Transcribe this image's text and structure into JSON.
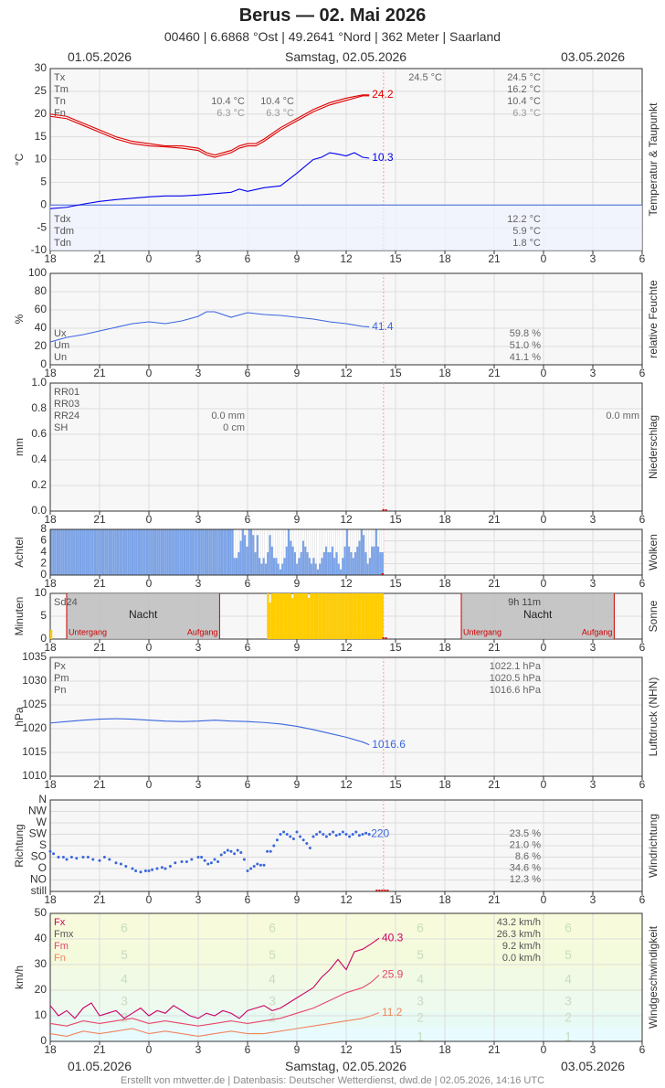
{
  "header": {
    "title": "Berus  —  02. Mai 2026",
    "subtitle": "00460  |  6.6868 °Ost  |  49.2641 °Nord  |  362 Meter  |  Saarland",
    "date_left": "01.05.2026",
    "date_center": "Samstag, 02.05.2026",
    "date_right": "03.05.2026"
  },
  "footer": "Erstellt von mtwetter.de | Datenbasis: Deutscher Wetterdienst, dwd.de | 02.05.2026, 14:16 UTC",
  "x_axis": {
    "ticks": [
      "18",
      "21",
      "0",
      "3",
      "6",
      "9",
      "12",
      "15",
      "18",
      "21",
      "0",
      "3",
      "6"
    ],
    "start_hour": 18,
    "range_hours": 36
  },
  "colors": {
    "red": "#e00000",
    "blue": "#0000ee",
    "royal": "#3a66dd",
    "cloud": "#7ba3e8",
    "sun": "#ffcc00",
    "night": "#bdbdbd",
    "gust": "#cc0066",
    "mean": "#e8456a",
    "min": "#f0845a",
    "grid": "#e0e0e0",
    "axis": "#333333",
    "marker": "#cc0000"
  },
  "chart_data": [
    {
      "id": "temp",
      "type": "line",
      "ylabel": "°C",
      "side_label": "Temperatur & Taupunkt",
      "ylim": [
        -10,
        30
      ],
      "yticks": [
        -10,
        -5,
        0,
        5,
        10,
        15,
        20,
        25,
        30
      ],
      "legend_top": [
        "Tx",
        "Tm",
        "Tn",
        "Fn"
      ],
      "legend_bottom": [
        "Tdx",
        "Tdm",
        "Tdn"
      ],
      "stats_day1": {
        "tx": "10.4 °C",
        "fn": "6.3 °C"
      },
      "stats_day1b": {
        "tx": "10.4 °C",
        "fn": "6.3 °C"
      },
      "stats_max": "24.5 °C",
      "stats_day2": {
        "tx": "24.5 °C",
        "tm": "16.2 °C",
        "tn": "10.4 °C",
        "fn": "6.3 °C",
        "tdx": "12.2 °C",
        "tdm": "5.9 °C",
        "tdn": "1.8 °C"
      },
      "series": [
        {
          "name": "Temperatur",
          "color": "#e00000",
          "end_label": "24.2",
          "x": [
            0,
            1,
            2,
            3,
            4,
            5,
            6,
            7,
            8,
            9,
            9.5,
            10,
            10.5,
            11,
            11.5,
            12,
            12.5,
            13,
            14,
            15,
            16,
            17,
            18,
            19,
            19.4
          ],
          "values": [
            20,
            19.5,
            18,
            16.5,
            15,
            14,
            13.5,
            13,
            13,
            12.5,
            11.5,
            11,
            11.5,
            12,
            13,
            13.5,
            13.5,
            14.5,
            17,
            19,
            21,
            22.5,
            23.5,
            24.2,
            24.2
          ]
        },
        {
          "name": "Temperatur Min",
          "color": "#e00000",
          "x": [
            0,
            1,
            2,
            3,
            4,
            5,
            6,
            7,
            8,
            9,
            9.5,
            10,
            10.5,
            11,
            11.5,
            12,
            12.5,
            13,
            14,
            15,
            16,
            17,
            18,
            19,
            19.4
          ],
          "values": [
            19.5,
            19,
            17.5,
            16,
            14.5,
            13.5,
            13,
            12.8,
            12.5,
            12,
            11,
            10.5,
            11,
            11.5,
            12.5,
            13,
            13,
            14,
            16.5,
            18.5,
            20.5,
            22,
            23,
            24,
            24
          ]
        },
        {
          "name": "Taupunkt",
          "color": "#0000ee",
          "end_label": "10.3",
          "x": [
            0,
            1,
            2,
            3,
            4,
            5,
            6,
            7,
            8,
            9,
            10,
            11,
            11.5,
            12,
            13,
            14,
            15,
            15.5,
            16,
            16.5,
            17,
            17.5,
            18,
            18.5,
            19,
            19.4
          ],
          "values": [
            -0.8,
            -0.5,
            0.2,
            0.8,
            1.2,
            1.5,
            1.8,
            2,
            2,
            2.2,
            2.5,
            2.8,
            3.5,
            3,
            3.8,
            4.2,
            7,
            8.5,
            10,
            10.5,
            11.5,
            11.2,
            10.8,
            11.5,
            10.5,
            10.3
          ]
        }
      ]
    },
    {
      "id": "humidity",
      "type": "line",
      "ylabel": "%",
      "side_label": "relative Feuchte",
      "ylim": [
        0,
        100
      ],
      "yticks": [
        0,
        20,
        40,
        60,
        80,
        100
      ],
      "legend_bottom": [
        "Ux",
        "Um",
        "Un"
      ],
      "stats": {
        "ux": "59.8 %",
        "um": "51.0 %",
        "un": "41.1 %"
      },
      "series": [
        {
          "name": "Feuchte",
          "color": "#3a66dd",
          "end_label": "41.4",
          "x": [
            0,
            1,
            2,
            3,
            4,
            5,
            6,
            7,
            8,
            9,
            9.5,
            10,
            11,
            12,
            13,
            14,
            15,
            16,
            17,
            18,
            19,
            19.4
          ],
          "values": [
            25,
            30,
            33,
            37,
            41,
            45,
            47,
            45,
            48,
            53,
            58,
            58,
            52,
            57,
            55,
            54,
            52,
            50,
            47,
            45,
            42,
            41.4
          ]
        }
      ]
    },
    {
      "id": "precip",
      "type": "bar",
      "ylabel": "mm",
      "side_label": "Niederschlag",
      "ylim": [
        0,
        1
      ],
      "yticks": [
        "0.0",
        "0.2",
        "0.4",
        "0.6",
        "0.8",
        "1.0"
      ],
      "legend_top": [
        "RR01",
        "RR03",
        "RR24",
        "SH"
      ],
      "stats_day1": {
        "rr24": "0.0 mm",
        "sh": "0 cm"
      },
      "stats_day2": {
        "rr24": "0.0 mm"
      },
      "values": []
    },
    {
      "id": "clouds",
      "type": "bar",
      "ylabel": "Achtel",
      "side_label": "Wolken",
      "ylim": [
        0,
        8
      ],
      "yticks": [
        0,
        2,
        4,
        6,
        8
      ],
      "values": [
        8,
        8,
        8,
        8,
        8,
        8,
        8,
        8,
        8,
        8,
        8,
        8,
        8,
        8,
        8,
        8,
        8,
        8,
        8,
        8,
        8,
        8,
        8,
        8,
        8,
        8,
        8,
        8,
        8,
        8,
        8,
        8,
        8,
        8,
        8,
        8,
        8,
        8,
        8,
        8,
        8,
        8,
        8,
        8,
        8,
        8,
        8,
        8,
        8,
        8,
        8,
        8,
        8,
        8,
        8,
        8,
        8,
        8,
        8,
        8,
        8,
        8,
        8,
        8,
        8,
        8,
        8,
        8,
        8,
        8,
        8,
        8,
        8,
        8,
        8,
        8,
        8,
        8,
        8,
        8,
        8,
        8,
        8,
        8,
        8,
        8,
        8,
        8,
        3,
        3,
        4,
        6,
        8,
        7,
        5,
        8,
        8,
        7,
        4,
        7,
        3,
        2,
        3,
        2,
        4,
        7,
        5,
        3,
        3,
        2,
        1,
        2,
        3,
        5,
        8,
        6,
        5,
        4,
        2,
        3,
        4,
        6,
        5,
        4,
        3,
        2,
        3,
        2,
        1,
        2,
        3,
        4,
        5,
        4,
        4,
        5,
        3,
        4,
        2,
        1,
        3,
        5,
        8,
        5,
        4,
        3,
        4,
        5,
        6,
        8,
        7,
        4,
        2,
        3,
        5,
        5,
        8,
        5,
        4,
        4
      ]
    },
    {
      "id": "sun",
      "type": "bar",
      "ylabel": "Minuten",
      "side_label": "Sonne",
      "ylim": [
        0,
        10
      ],
      "yticks": [
        0,
        5,
        10
      ],
      "legend_top": [
        "Sd24"
      ],
      "night_label": "Nacht",
      "sunset_label": "Untergang",
      "sunrise_label": "Aufgang",
      "sun_total": "9h 11m",
      "values": [
        2,
        0,
        0,
        0,
        0,
        0,
        0,
        0,
        0,
        0,
        0,
        0,
        0,
        0,
        0,
        0,
        0,
        0,
        0,
        0,
        0,
        0,
        0,
        0,
        0,
        0,
        0,
        0,
        0,
        0,
        0,
        0,
        0,
        0,
        0,
        0,
        0,
        0,
        0,
        0,
        0,
        0,
        0,
        0,
        0,
        0,
        0,
        0,
        0,
        0,
        0,
        0,
        0,
        0,
        0,
        0,
        0,
        0,
        0,
        0,
        0,
        0,
        0,
        0,
        0,
        0,
        0,
        0,
        0,
        0,
        0,
        0,
        0,
        0,
        0,
        0,
        0,
        0,
        0,
        0,
        0,
        0,
        0,
        0,
        0,
        0,
        0,
        0,
        0,
        0,
        0,
        0,
        0,
        0,
        0,
        0,
        0,
        0,
        0,
        0,
        0,
        0,
        0,
        0,
        0,
        0,
        10,
        8,
        10,
        10,
        10,
        10,
        10,
        10,
        10,
        10,
        10,
        10,
        9,
        10,
        10,
        10,
        10,
        10,
        10,
        10,
        9,
        10,
        10,
        10,
        10,
        10,
        10,
        10,
        10,
        10,
        10,
        10,
        10,
        10,
        10,
        10,
        10,
        10,
        10,
        10,
        10,
        10,
        10,
        10,
        10,
        10,
        10,
        10,
        10,
        10,
        10,
        10,
        10,
        10,
        10,
        10,
        10
      ]
    },
    {
      "id": "pressure",
      "type": "line",
      "ylabel": "hPa",
      "side_label": "Luftdruck (NHN)",
      "ylim": [
        1010,
        1035
      ],
      "yticks": [
        1010,
        1015,
        1020,
        1025,
        1030,
        1035
      ],
      "legend_top": [
        "Px",
        "Pm",
        "Pn"
      ],
      "stats": {
        "px": "1022.1 hPa",
        "pm": "1020.5 hPa",
        "pn": "1016.6 hPa"
      },
      "series": [
        {
          "name": "Luftdruck",
          "color": "#3a66dd",
          "end_label": "1016.6",
          "x": [
            0,
            1,
            2,
            3,
            4,
            5,
            6,
            7,
            8,
            9,
            10,
            11,
            12,
            13,
            14,
            15,
            16,
            17,
            18,
            19,
            19.4
          ],
          "values": [
            1021.2,
            1021.5,
            1021.8,
            1022.0,
            1022.1,
            1022.0,
            1021.8,
            1021.6,
            1021.5,
            1021.6,
            1021.8,
            1021.6,
            1021.5,
            1021.3,
            1021.0,
            1020.5,
            1019.8,
            1019.0,
            1018.2,
            1017.2,
            1016.6
          ]
        }
      ]
    },
    {
      "id": "winddir",
      "type": "scatter",
      "ylabel": "Richtung",
      "side_label": "Windrichtung",
      "ylim": [
        0,
        8
      ],
      "ytick_labels": [
        "still",
        "NO",
        "O",
        "SO",
        "S",
        "SW",
        "W",
        "NW",
        "N"
      ],
      "stats": {
        "n": "23.5 %",
        "sw": "21.0 %",
        "so": "8.6 %",
        "o": "34.6 %",
        "no": "12.3 %"
      },
      "end_label": "220",
      "x": [
        0,
        0.2,
        0.5,
        0.8,
        1.0,
        1.3,
        1.6,
        2,
        2.3,
        2.6,
        3,
        3.3,
        3.6,
        4,
        4.3,
        4.6,
        5,
        5.2,
        5.5,
        5.8,
        6,
        6.2,
        6.5,
        6.8,
        7,
        7.3,
        7.6,
        8,
        8.3,
        8.6,
        9,
        9.2,
        9.4,
        9.6,
        9.8,
        10,
        10.2,
        10.4,
        10.6,
        10.8,
        11,
        11.2,
        11.4,
        11.6,
        11.8,
        12,
        12.2,
        12.4,
        12.6,
        12.8,
        13,
        13.2,
        13.4,
        13.6,
        13.8,
        14,
        14.2,
        14.4,
        14.6,
        14.8,
        15,
        15.2,
        15.4,
        15.6,
        15.8,
        16,
        16.2,
        16.4,
        16.6,
        16.8,
        17,
        17.2,
        17.4,
        17.6,
        17.8,
        18,
        18.2,
        18.4,
        18.6,
        18.8,
        19,
        19.2,
        19.4
      ],
      "values": [
        3.5,
        3.3,
        3,
        3,
        2.8,
        3,
        2.9,
        3,
        3,
        2.8,
        2.7,
        3,
        2.8,
        2.5,
        2.4,
        2.2,
        2,
        1.8,
        1.7,
        1.8,
        1.8,
        1.9,
        2,
        2.1,
        2,
        2.2,
        2.5,
        2.6,
        2.6,
        2.8,
        3,
        3,
        2.7,
        2.4,
        2.5,
        2.8,
        2.6,
        3.2,
        3.4,
        3.6,
        3.5,
        3.3,
        3.6,
        3.4,
        2.8,
        1.8,
        2,
        2.2,
        2.4,
        2.3,
        2.3,
        3.5,
        3.5,
        4,
        4.5,
        5,
        5.2,
        5,
        4.8,
        4.6,
        5.2,
        4.8,
        4.5,
        4.2,
        3.8,
        4.8,
        5,
        5.2,
        5.0,
        4.8,
        5,
        5.2,
        4.9,
        5,
        5.2,
        5.0,
        4.8,
        5,
        5.2,
        4.9,
        5,
        5.1,
        5
      ]
    },
    {
      "id": "windspeed",
      "type": "line",
      "ylabel": "km/h",
      "side_label": "Windgeschwindigkeit",
      "ylim": [
        0,
        50
      ],
      "yticks": [
        0,
        10,
        20,
        30,
        40,
        50
      ],
      "legend_top": [
        "Fx",
        "Fmx",
        "Fm",
        "Fn"
      ],
      "stats": {
        "fx": "43.2 km/h",
        "fmx": "26.3 km/h",
        "fm": "9.2 km/h",
        "fn": "0.0 km/h"
      },
      "beaufort_labels": [
        "1",
        "2",
        "3",
        "4",
        "5",
        "6"
      ],
      "series": [
        {
          "name": "Fx",
          "color": "#cc0066",
          "end_label": "40.3",
          "x": [
            0,
            0.5,
            1,
            1.5,
            2,
            2.5,
            3,
            3.5,
            4,
            4.5,
            5,
            5.5,
            6,
            6.5,
            7,
            7.5,
            8,
            8.5,
            9,
            9.5,
            10,
            10.5,
            11,
            11.5,
            12,
            12.5,
            13,
            13.5,
            14,
            14.5,
            15,
            15.5,
            16,
            16.5,
            17,
            17.5,
            18,
            18.5,
            19,
            19.5,
            20
          ],
          "values": [
            14,
            10,
            12,
            9,
            13,
            15,
            10,
            11,
            12,
            9,
            11,
            13,
            10,
            12,
            11,
            14,
            12,
            10,
            9,
            11,
            10,
            12,
            11,
            9,
            12,
            13,
            14,
            12,
            13,
            15,
            17,
            19,
            21,
            25,
            28,
            32,
            28,
            35,
            36,
            38,
            40.3
          ]
        },
        {
          "name": "Fmx",
          "color": "#e8456a",
          "end_label": "25.9",
          "x": [
            0,
            1,
            2,
            3,
            4,
            5,
            6,
            7,
            8,
            9,
            10,
            11,
            12,
            13,
            14,
            15,
            16,
            17,
            18,
            19,
            19.5,
            20
          ],
          "values": [
            7,
            6,
            8,
            7,
            8,
            9,
            7,
            8,
            7,
            6,
            7,
            8,
            7,
            8,
            9,
            11,
            13,
            16,
            19,
            21,
            23,
            25.9
          ]
        },
        {
          "name": "Fm",
          "color": "#f0845a",
          "end_label": "11.2",
          "x": [
            0,
            1,
            2,
            3,
            4,
            5,
            6,
            7,
            8,
            9,
            10,
            11,
            12,
            13,
            14,
            15,
            16,
            17,
            18,
            19,
            19.5,
            20
          ],
          "values": [
            3,
            2,
            4,
            3,
            4,
            5,
            3,
            4,
            3,
            2,
            3,
            4,
            3,
            3,
            4,
            5,
            6,
            7,
            8,
            9,
            10,
            11.2
          ]
        }
      ]
    }
  ]
}
